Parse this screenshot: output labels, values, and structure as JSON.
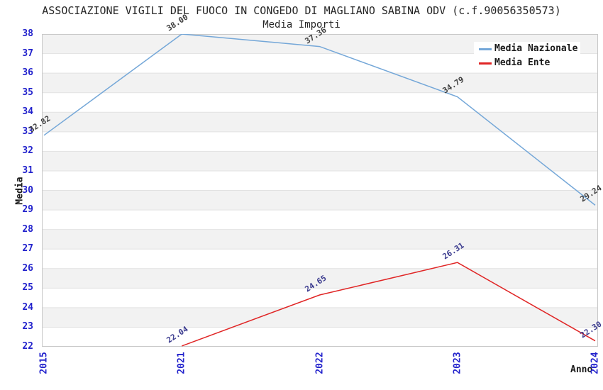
{
  "chart_data": {
    "type": "line",
    "title": "ASSOCIAZIONE VIGILI DEL FUOCO IN CONGEDO DI MAGLIANO SABINA ODV (c.f.90056350573)",
    "subtitle": "Media Importi",
    "xlabel": "Anno",
    "ylabel": "Media",
    "categories": [
      "2015",
      "2021",
      "2022",
      "2023",
      "2024"
    ],
    "ylim": [
      22,
      38
    ],
    "ytick_step": 1,
    "grid": true,
    "legend_position": "top-right",
    "series": [
      {
        "name": "Media Nazionale",
        "color": "#74a7d8",
        "label_color": "#404040",
        "values": [
          32.82,
          38.0,
          37.36,
          34.79,
          29.24
        ]
      },
      {
        "name": "Media Ente",
        "color": "#e02525",
        "label_color": "#3c3c8f",
        "values": [
          null,
          22.04,
          24.65,
          26.31,
          22.3
        ]
      }
    ],
    "colors": {
      "band": "#f2f2f2",
      "grid": "#e2e2e2",
      "border": "#c8c8c8",
      "tick_label": "#2222cc"
    }
  }
}
